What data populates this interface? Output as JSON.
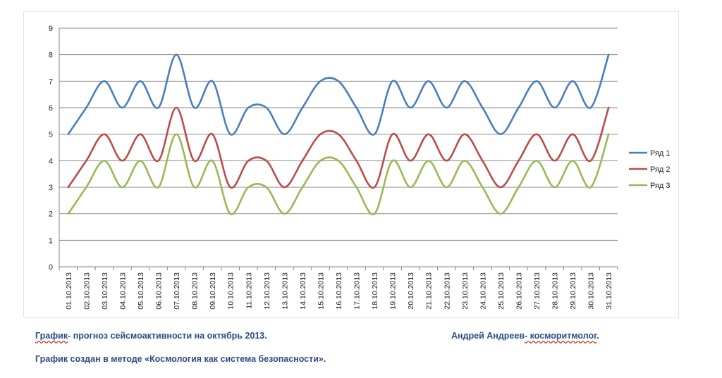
{
  "chart_data": {
    "type": "line",
    "smooth": true,
    "title": "",
    "xlabel": "",
    "ylabel": "",
    "ylim": [
      0,
      9
    ],
    "yticks": [
      0,
      1,
      2,
      3,
      4,
      5,
      6,
      7,
      8,
      9
    ],
    "grid": true,
    "legend_position": "right",
    "categories": [
      "01.10.2013",
      "02.10.2013",
      "03.10.2013",
      "04.10.2013",
      "05.10.2013",
      "06.10.2013",
      "07.10.2013",
      "08.10.2013",
      "09.10.2013",
      "10.10.2013",
      "11.10.2013",
      "12.10.2013",
      "13.10.2013",
      "14.10.2013",
      "15.10.2013",
      "16.10.2013",
      "17.10.2013",
      "18.10.2013",
      "19.10.2013",
      "20.10.2013",
      "21.10.2013",
      "22.10.2013",
      "23.10.2013",
      "24.10.2013",
      "25.10.2013",
      "26.10.2013",
      "27.10.2013",
      "28.10.2013",
      "29.10.2013",
      "30.10.2013",
      "31.10.2013"
    ],
    "series": [
      {
        "name": "Ряд 1",
        "color": "#4a7ebb",
        "values": [
          5,
          6,
          7,
          6,
          7,
          6,
          8,
          6,
          7,
          5,
          6,
          6,
          5,
          6,
          7,
          7,
          6,
          5,
          7,
          6,
          7,
          6,
          7,
          6,
          5,
          6,
          7,
          6,
          7,
          6,
          8
        ]
      },
      {
        "name": "Ряд 2",
        "color": "#be4b48",
        "values": [
          3,
          4,
          5,
          4,
          5,
          4,
          6,
          4,
          5,
          3,
          4,
          4,
          3,
          4,
          5,
          5,
          4,
          3,
          5,
          4,
          5,
          4,
          5,
          4,
          3,
          4,
          5,
          4,
          5,
          4,
          6
        ]
      },
      {
        "name": "Ряд 3",
        "color": "#98b954",
        "values": [
          2,
          3,
          4,
          3,
          4,
          3,
          5,
          3,
          4,
          2,
          3,
          3,
          2,
          3,
          4,
          4,
          3,
          2,
          4,
          3,
          4,
          3,
          4,
          3,
          2,
          3,
          4,
          3,
          4,
          3,
          5
        ]
      }
    ]
  },
  "captions": {
    "line1_left_prefix": "График",
    "line1_left_rest": "- прогноз сейсмоактивности на октябрь 2013.",
    "author_prefix": "Андрей Андреев",
    "author_dash": "- ",
    "author_title": "косморитмолог",
    "author_period": ".",
    "line2": "График создан в методе «Космология как система безопасности»."
  }
}
